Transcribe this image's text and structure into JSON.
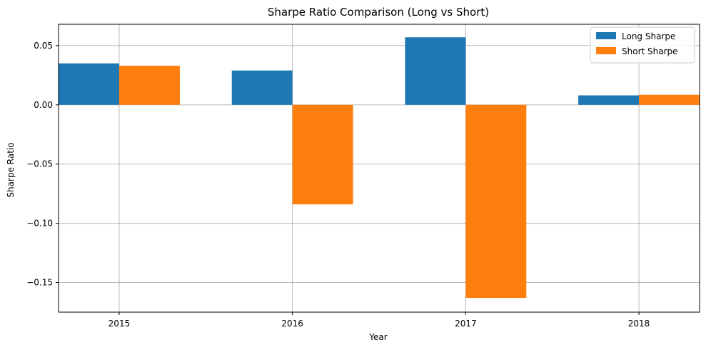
{
  "chart_data": {
    "type": "bar",
    "title": "Sharpe Ratio Comparison (Long vs Short)",
    "xlabel": "Year",
    "ylabel": "Sharpe Ratio",
    "categories": [
      "2015",
      "2016",
      "2017",
      "2018"
    ],
    "series": [
      {
        "name": "Long Sharpe",
        "color": "#1f77b4",
        "values": [
          0.035,
          0.029,
          0.057,
          0.008
        ]
      },
      {
        "name": "Short Sharpe",
        "color": "#ff7f0e",
        "values": [
          0.033,
          -0.084,
          -0.163,
          0.0085
        ]
      }
    ],
    "ylim": [
      -0.175,
      0.068
    ],
    "yticks": [
      0.05,
      0.0,
      -0.05,
      -0.1,
      -0.15
    ],
    "ytick_labels": [
      "0.05",
      "0.00",
      "−0.05",
      "−0.10",
      "−0.15"
    ],
    "grid": true,
    "legend_position": "top-right"
  }
}
